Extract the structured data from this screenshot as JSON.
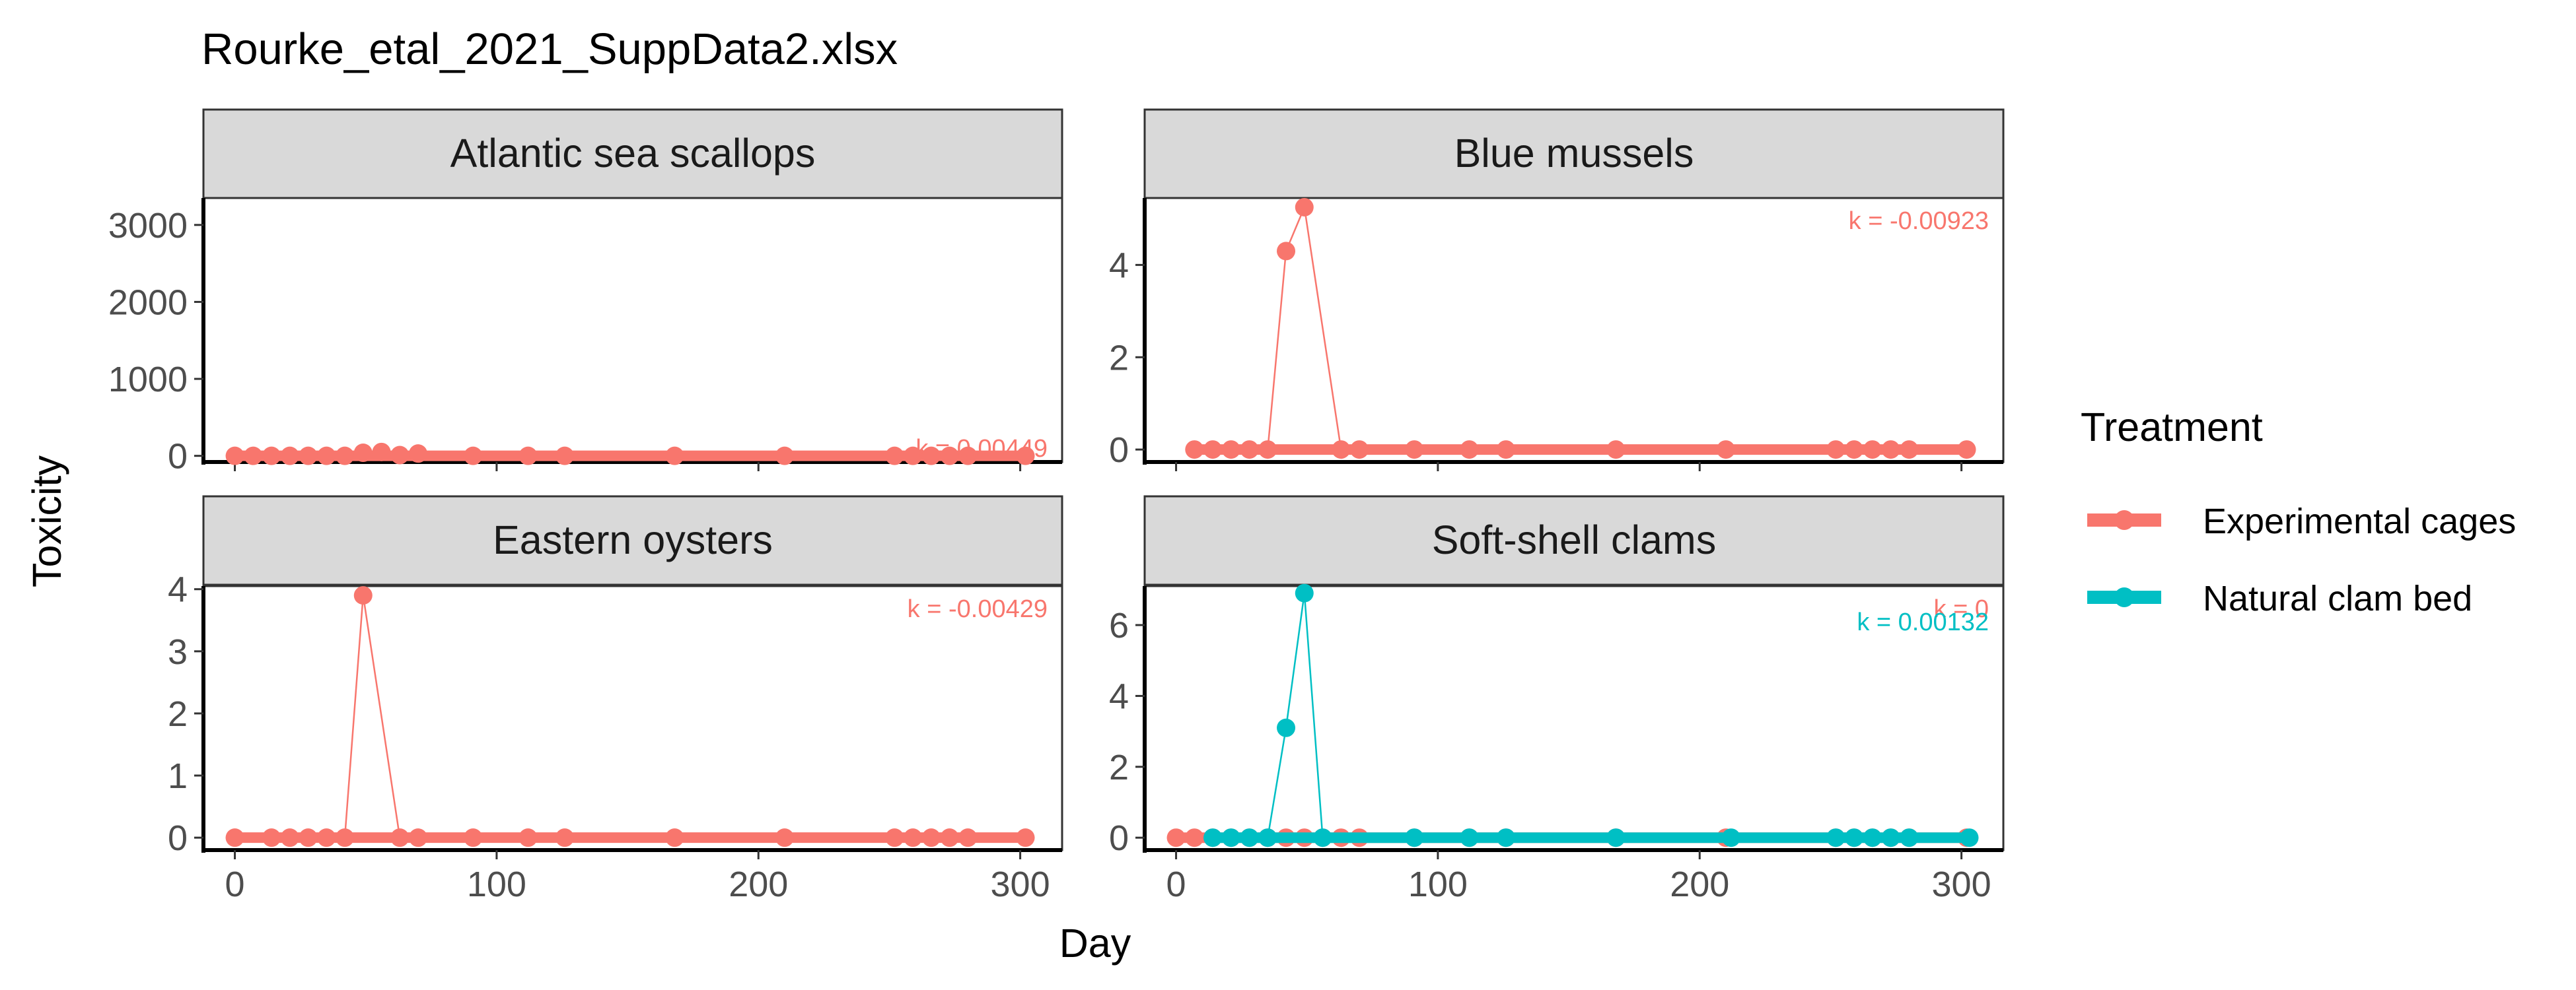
{
  "title": "Rourke_etal_2021_SuppData2.xlsx",
  "colors": {
    "Experimental cages": "#F8766D",
    "Natural clam bed": "#00BFC4",
    "strip_fill": "#D9D9D9",
    "panel_border": "#333333",
    "axis_line": "#000000"
  },
  "legend": {
    "title": "Treatment",
    "entries": [
      "Experimental cages",
      "Natural clam bed"
    ]
  },
  "chart_data": {
    "type": "line",
    "xlabel": "Day",
    "ylabel": "Toxicity",
    "xlim": [
      -12,
      316
    ],
    "xticks": [
      0,
      100,
      200,
      300
    ],
    "grid": false,
    "legend_position": "right",
    "panels": [
      {
        "facet": "Atlantic sea scallops",
        "ylim": [
          -80,
          3350
        ],
        "yticks": [
          0,
          1000,
          2000,
          3000
        ],
        "series": [
          {
            "treatment": "Experimental cages",
            "x": [
              0,
              7,
              14,
              21,
              28,
              35,
              42,
              49,
              56,
              63,
              70,
              91,
              112,
              126,
              168,
              210,
              252,
              259,
              266,
              273,
              280,
              302
            ],
            "y": [
              0,
              0,
              0,
              0,
              0,
              0,
              0,
              40,
              50,
              10,
              30,
              0,
              0,
              0,
              0,
              0,
              0,
              0,
              0,
              0,
              0,
              0
            ],
            "k": "k = 0.00449"
          }
        ]
      },
      {
        "facet": "Blue mussels",
        "ylim": [
          -0.27,
          5.45
        ],
        "yticks": [
          0,
          2,
          4
        ],
        "series": [
          {
            "treatment": "Experimental cages",
            "x": [
              7,
              14,
              21,
              28,
              35,
              42,
              49,
              63,
              70,
              91,
              112,
              126,
              168,
              210,
              252,
              259,
              266,
              273,
              280,
              302
            ],
            "y": [
              0,
              0,
              0,
              0,
              0,
              4.3,
              5.25,
              0,
              0,
              0,
              0,
              0,
              0,
              0,
              0,
              0,
              0,
              0,
              0,
              0
            ],
            "k": "k = -0.00923"
          }
        ]
      },
      {
        "facet": "Eastern oysters",
        "ylim": [
          -0.2,
          4.05
        ],
        "yticks": [
          0,
          1,
          2,
          3,
          4
        ],
        "series": [
          {
            "treatment": "Experimental cages",
            "x": [
              0,
              14,
              21,
              28,
              35,
              42,
              49,
              63,
              70,
              91,
              112,
              126,
              168,
              210,
              252,
              259,
              266,
              273,
              280,
              302
            ],
            "y": [
              0,
              0,
              0,
              0,
              0,
              0,
              3.9,
              0,
              0,
              0,
              0,
              0,
              0,
              0,
              0,
              0,
              0,
              0,
              0,
              0
            ],
            "k": "k = -0.00429"
          }
        ]
      },
      {
        "facet": "Soft-shell clams",
        "ylim": [
          -0.35,
          7.1
        ],
        "yticks": [
          0,
          2,
          4,
          6
        ],
        "series": [
          {
            "treatment": "Experimental cages",
            "x": [
              0,
              7,
              14,
              21,
              28,
              35,
              42,
              49,
              56,
              63,
              70,
              91,
              112,
              126,
              168,
              210,
              252,
              259,
              266,
              273,
              280,
              302
            ],
            "y": [
              0,
              0,
              0,
              0,
              0,
              0,
              0,
              0,
              0,
              0,
              0,
              0,
              0,
              0,
              0,
              0,
              0,
              0,
              0,
              0,
              0,
              0
            ],
            "k": "k = 0"
          },
          {
            "treatment": "Natural clam bed",
            "x": [
              14,
              21,
              28,
              35,
              42,
              49,
              56,
              91,
              112,
              126,
              168,
              212,
              252,
              259,
              266,
              273,
              280,
              303
            ],
            "y": [
              0,
              0,
              0,
              0,
              3.1,
              6.9,
              0,
              0,
              0,
              0,
              0,
              0,
              0,
              0,
              0,
              0,
              0,
              0
            ],
            "k": "k = 0.00132"
          }
        ]
      }
    ]
  }
}
